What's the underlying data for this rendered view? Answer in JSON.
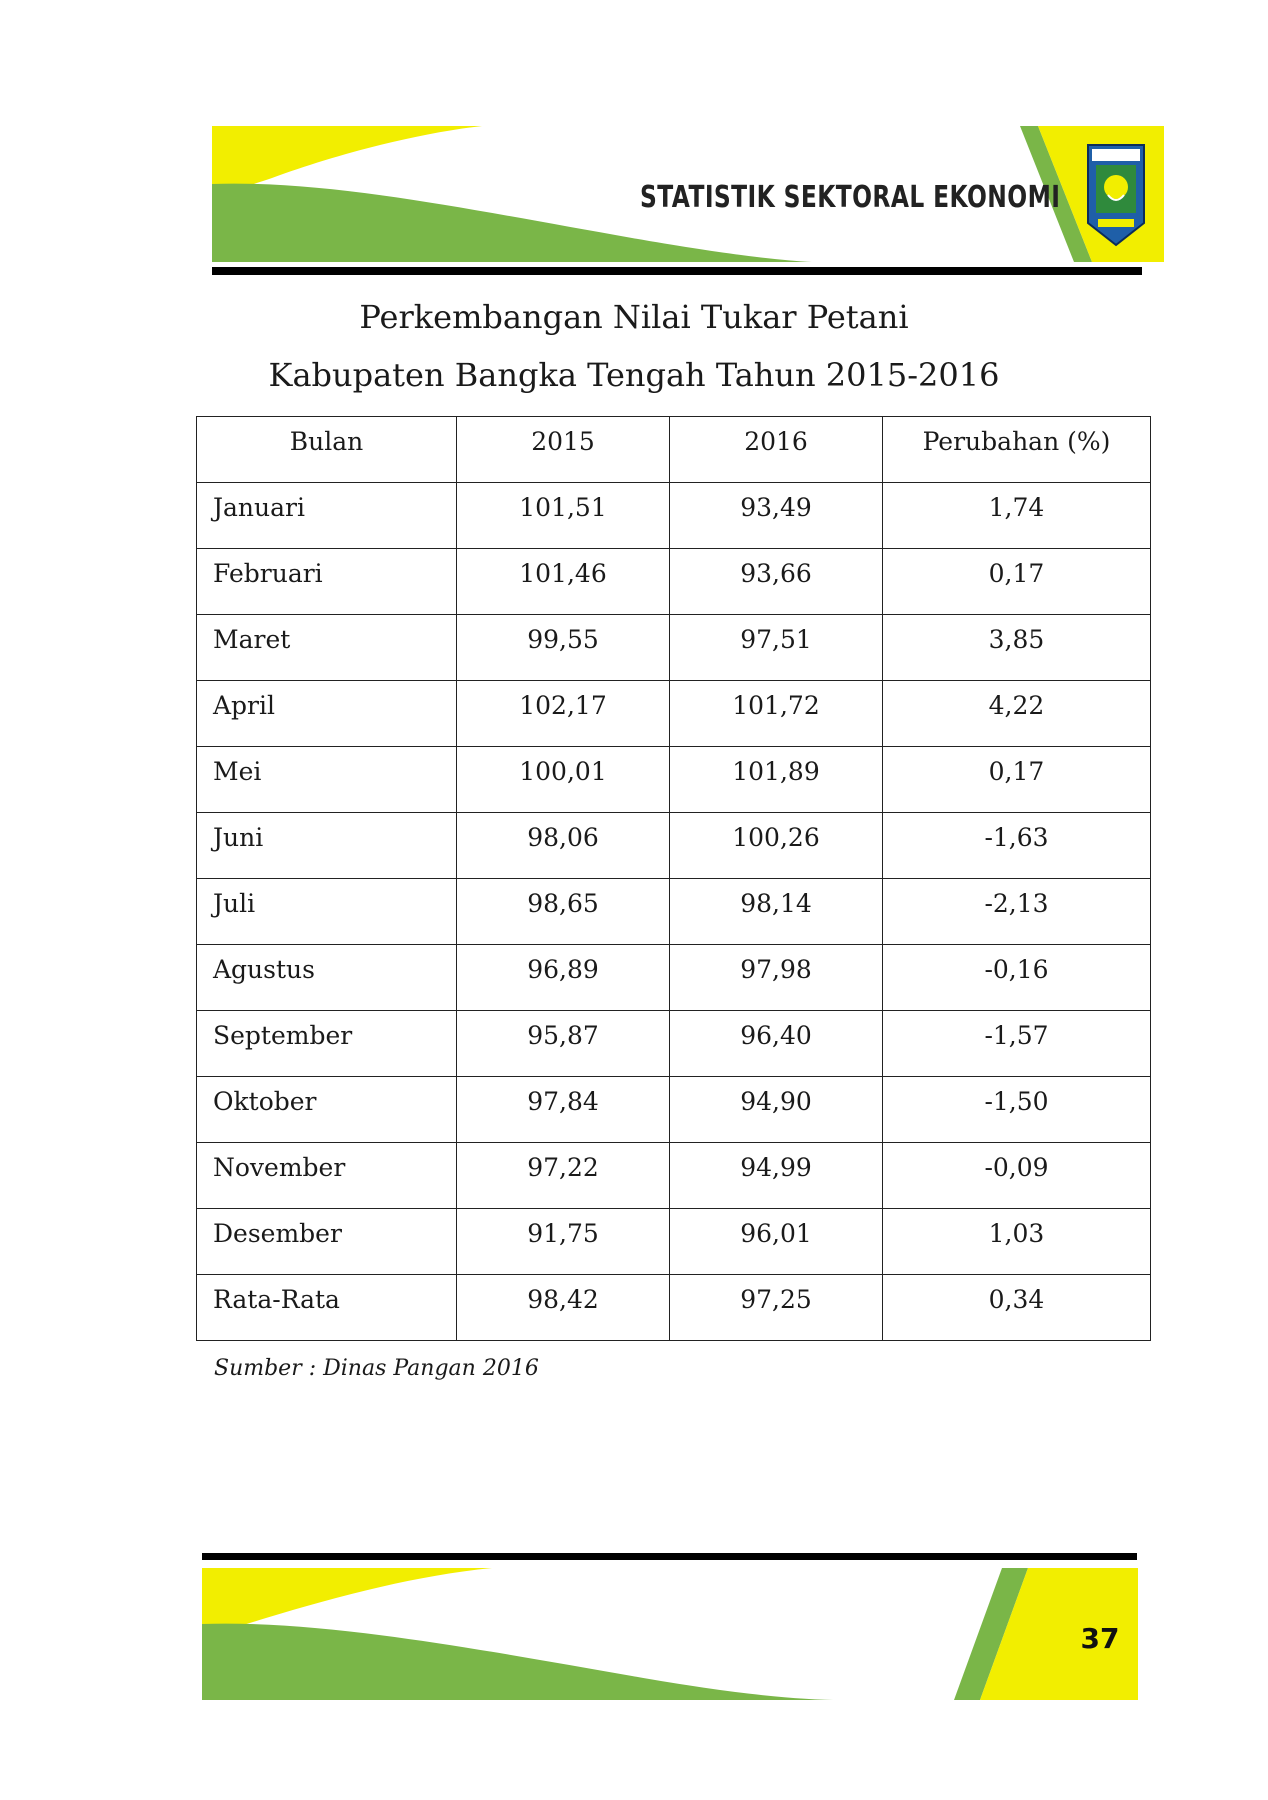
{
  "header": {
    "title": "STATISTIK SEKTORAL EKONOMI",
    "colors": {
      "yellow": "#f2ee00",
      "green": "#7ab648"
    },
    "emblem_icon": "regency-emblem-icon"
  },
  "document": {
    "title_line1": "Perkembangan Nilai Tukar Petani",
    "title_line2": "Kabupaten Bangka Tengah Tahun 2015-2016"
  },
  "table": {
    "headers": [
      "Bulan",
      "2015",
      "2016",
      "Perubahan (%)"
    ],
    "rows": [
      [
        "Januari",
        "101,51",
        "93,49",
        "1,74"
      ],
      [
        "Februari",
        "101,46",
        "93,66",
        "0,17"
      ],
      [
        "Maret",
        "99,55",
        "97,51",
        "3,85"
      ],
      [
        "April",
        "102,17",
        "101,72",
        "4,22"
      ],
      [
        "Mei",
        "100,01",
        "101,89",
        "0,17"
      ],
      [
        "Juni",
        "98,06",
        "100,26",
        "-1,63"
      ],
      [
        "Juli",
        "98,65",
        "98,14",
        "-2,13"
      ],
      [
        "Agustus",
        "96,89",
        "97,98",
        "-0,16"
      ],
      [
        "September",
        "95,87",
        "96,40",
        "-1,57"
      ],
      [
        "Oktober",
        "97,84",
        "94,90",
        "-1,50"
      ],
      [
        "November",
        "97,22",
        "94,99",
        "-0,09"
      ],
      [
        "Desember",
        "91,75",
        "96,01",
        "1,03"
      ],
      [
        "Rata-Rata",
        "98,42",
        "97,25",
        "0,34"
      ]
    ],
    "source": "Sumber : Dinas Pangan 2016"
  },
  "footer": {
    "page_number": "37"
  }
}
